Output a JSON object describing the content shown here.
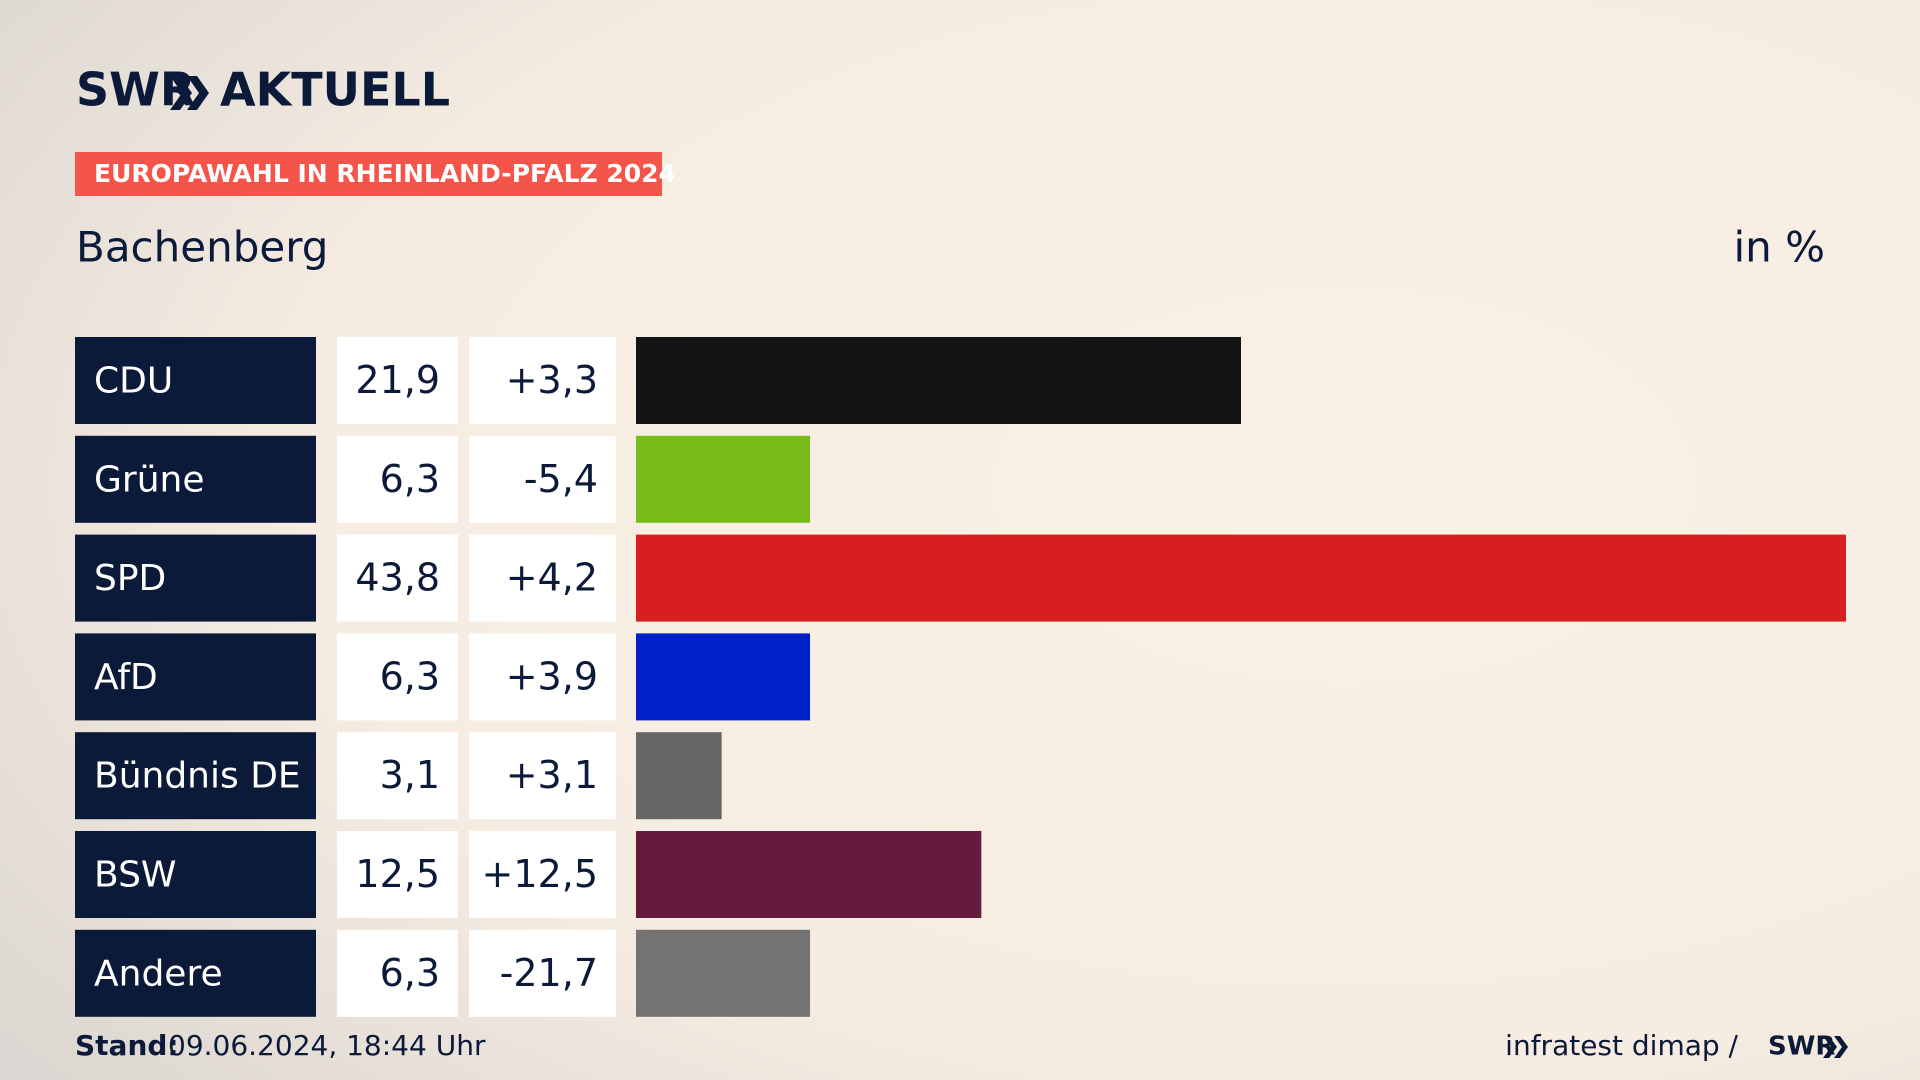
{
  "brand": {
    "name": "SWR",
    "product": "AKTUELL"
  },
  "chart_data": {
    "type": "bar",
    "label": "EUROPAWAHL IN RHEINLAND-PFALZ 2024",
    "title": "Bachenberg",
    "unit": "in %",
    "categories": [
      "CDU",
      "Grüne",
      "SPD",
      "AfD",
      "Bündnis DE",
      "BSW",
      "Andere"
    ],
    "values": [
      21.9,
      6.3,
      43.8,
      6.3,
      3.1,
      12.5,
      6.3
    ],
    "value_labels": [
      "21,9",
      "6,3",
      "43,8",
      "6,3",
      "3,1",
      "12,5",
      "6,3"
    ],
    "changes": [
      3.3,
      -5.4,
      4.2,
      3.9,
      3.1,
      12.5,
      -21.7
    ],
    "change_labels": [
      "+3,3",
      "-5,4",
      "+4,2",
      "+3,9",
      "+3,1",
      "+12,5",
      "-21,7"
    ],
    "colors": [
      "#141414",
      "#78bc1b",
      "#d71f1f",
      "#0021c8",
      "#666666",
      "#661a3e",
      "#737373"
    ]
  },
  "footer": {
    "stand_label": "Stand:",
    "stand": "09.06.2024, 18:44 Uhr",
    "source": "infratest dimap /",
    "source_brand": "SWR"
  }
}
